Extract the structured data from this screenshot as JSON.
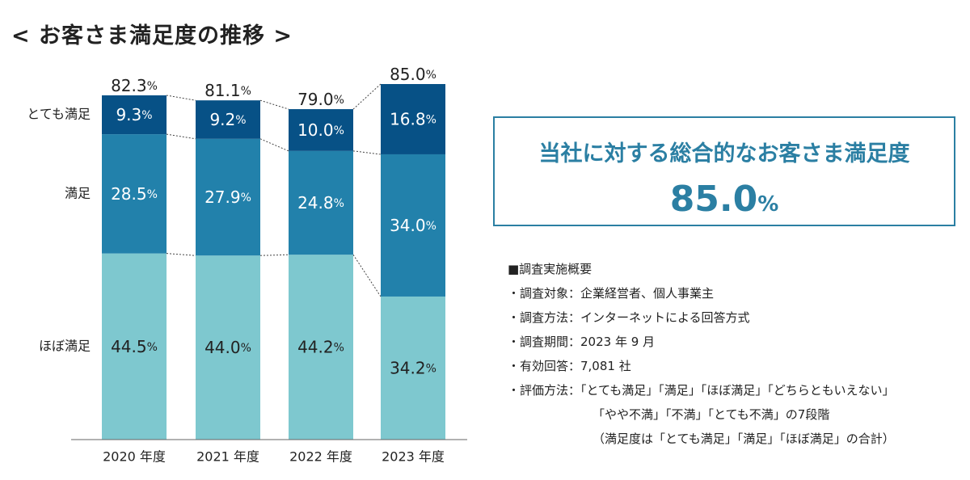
{
  "title": "< お客さま満足度の推移 >",
  "percent_sign": "%",
  "chart_data": {
    "type": "bar",
    "stacked": true,
    "categories": [
      "2020 年度",
      "2021 年度",
      "2022 年度",
      "2023 年度"
    ],
    "series": [
      {
        "name": "ほぼ満足",
        "values": [
          44.5,
          44.0,
          44.2,
          34.2
        ],
        "color": "#7ec8cf",
        "label_color": "#222222"
      },
      {
        "name": "満足",
        "values": [
          28.5,
          27.9,
          24.8,
          34.0
        ],
        "color": "#2281ab",
        "label_color": "#ffffff"
      },
      {
        "name": "とても満足",
        "values": [
          9.3,
          9.2,
          10.0,
          16.8
        ],
        "color": "#075186",
        "label_color": "#ffffff"
      }
    ],
    "value_labels": [
      [
        "44.5",
        "44.0",
        "44.2",
        "34.2"
      ],
      [
        "28.5",
        "27.9",
        "24.8",
        "34.0"
      ],
      [
        "9.3",
        "9.2",
        "10.0",
        "16.8"
      ]
    ],
    "totals": [
      "82.3",
      "81.1",
      "79.0",
      "85.0"
    ],
    "ylim": [
      0,
      85
    ],
    "legend_position": "left"
  },
  "summary": {
    "title": "当社に対する総合的なお客さま満足度",
    "value": "85.0",
    "unit": "%"
  },
  "notes": {
    "heading": "■調査実施概要",
    "lines": [
      "・調査対象：企業経営者、個人事業主",
      "・調査方法：インターネットによる回答方式",
      "・調査期間：2023 年 9 月",
      "・有効回答：7,081 社",
      "・評価方法：「とても満足」「満足」「ほぼ満足」「どちらともいえない」",
      "「やや不満」「不満」「とても不満」の7段階",
      "（満足度は「とても満足」「満足」「ほぼ満足」の合計）"
    ]
  }
}
